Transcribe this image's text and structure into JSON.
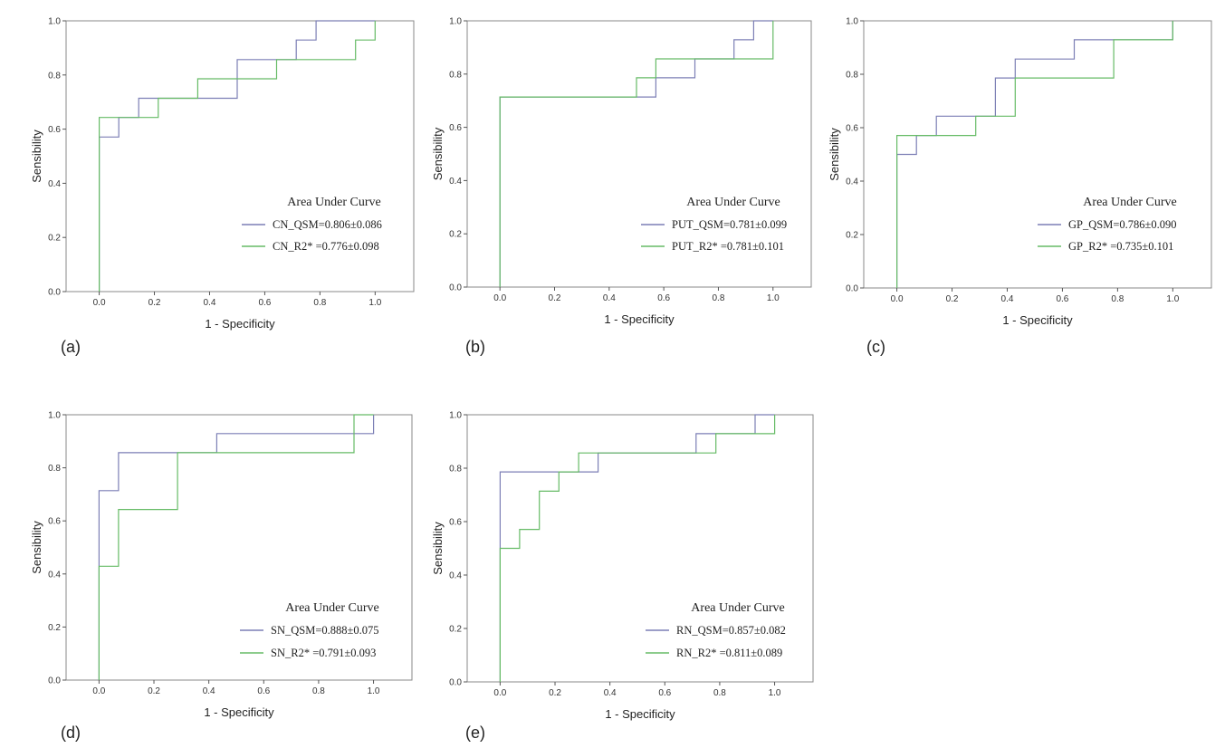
{
  "colors": {
    "qsm": "#7c7fb5",
    "r2": "#66bb66",
    "axis": "#555555",
    "frame": "#888888"
  },
  "chart_data": [
    {
      "type": "line",
      "panel_label": "(a)",
      "xlabel": "1 - Specificity",
      "ylabel": "Sensibility",
      "xlim": [
        -0.12,
        1.14
      ],
      "ylim": [
        0,
        1.0
      ],
      "xticks": [
        "0.0",
        "0.2",
        "0.4",
        "0.6",
        "0.8",
        "1.0"
      ],
      "yticks": [
        "0.0",
        "0.2",
        "0.4",
        "0.6",
        "0.8",
        "1.0"
      ],
      "legend_title": "Area Under Curve",
      "series": [
        {
          "name": "CN_QSM=0.806±0.086",
          "color_key": "qsm",
          "points": [
            [
              0,
              0
            ],
            [
              0,
              0.571
            ],
            [
              0.071,
              0.571
            ],
            [
              0.071,
              0.643
            ],
            [
              0.143,
              0.643
            ],
            [
              0.143,
              0.714
            ],
            [
              0.5,
              0.714
            ],
            [
              0.5,
              0.857
            ],
            [
              0.714,
              0.857
            ],
            [
              0.714,
              0.929
            ],
            [
              0.786,
              0.929
            ],
            [
              0.786,
              1.0
            ],
            [
              1.0,
              1.0
            ]
          ]
        },
        {
          "name": "CN_R2* =0.776±0.098",
          "color_key": "r2",
          "points": [
            [
              0,
              0
            ],
            [
              0,
              0.643
            ],
            [
              0.214,
              0.643
            ],
            [
              0.214,
              0.714
            ],
            [
              0.357,
              0.714
            ],
            [
              0.357,
              0.786
            ],
            [
              0.643,
              0.786
            ],
            [
              0.643,
              0.857
            ],
            [
              0.929,
              0.857
            ],
            [
              0.929,
              0.929
            ],
            [
              1.0,
              0.929
            ],
            [
              1.0,
              1.0
            ]
          ]
        }
      ]
    },
    {
      "type": "line",
      "panel_label": "(b)",
      "xlabel": "1 - Specificity",
      "ylabel": "Sensibility",
      "xlim": [
        -0.12,
        1.14
      ],
      "ylim": [
        0,
        1.0
      ],
      "xticks": [
        "0.0",
        "0.2",
        "0.4",
        "0.6",
        "0.8",
        "1.0"
      ],
      "yticks": [
        "0.0",
        "0.2",
        "0.4",
        "0.6",
        "0.8",
        "1.0"
      ],
      "legend_title": "Area Under Curve",
      "series": [
        {
          "name": "PUT_QSM=0.781±0.099",
          "color_key": "qsm",
          "points": [
            [
              0,
              0
            ],
            [
              0,
              0.714
            ],
            [
              0.571,
              0.714
            ],
            [
              0.571,
              0.786
            ],
            [
              0.714,
              0.786
            ],
            [
              0.714,
              0.857
            ],
            [
              0.857,
              0.857
            ],
            [
              0.857,
              0.929
            ],
            [
              0.929,
              0.929
            ],
            [
              0.929,
              1.0
            ],
            [
              1.0,
              1.0
            ]
          ]
        },
        {
          "name": "PUT_R2* =0.781±0.101",
          "color_key": "r2",
          "points": [
            [
              0,
              0
            ],
            [
              0,
              0.714
            ],
            [
              0.5,
              0.714
            ],
            [
              0.5,
              0.786
            ],
            [
              0.571,
              0.786
            ],
            [
              0.571,
              0.857
            ],
            [
              1.0,
              0.857
            ],
            [
              1.0,
              1.0
            ]
          ]
        }
      ]
    },
    {
      "type": "line",
      "panel_label": "(c)",
      "xlabel": "1 - Specificity",
      "ylabel": "Sensibility",
      "xlim": [
        -0.12,
        1.14
      ],
      "ylim": [
        0,
        1.0
      ],
      "xticks": [
        "0.0",
        "0.2",
        "0.4",
        "0.6",
        "0.8",
        "1.0"
      ],
      "yticks": [
        "0.0",
        "0.2",
        "0.4",
        "0.6",
        "0.8",
        "1.0"
      ],
      "legend_title": "Area Under Curve",
      "series": [
        {
          "name": "GP_QSM=0.786±0.090",
          "color_key": "qsm",
          "points": [
            [
              0,
              0
            ],
            [
              0,
              0.5
            ],
            [
              0.071,
              0.5
            ],
            [
              0.071,
              0.571
            ],
            [
              0.143,
              0.571
            ],
            [
              0.143,
              0.643
            ],
            [
              0.357,
              0.643
            ],
            [
              0.357,
              0.786
            ],
            [
              0.429,
              0.786
            ],
            [
              0.429,
              0.857
            ],
            [
              0.643,
              0.857
            ],
            [
              0.643,
              0.929
            ],
            [
              1.0,
              0.929
            ],
            [
              1.0,
              1.0
            ]
          ]
        },
        {
          "name": "GP_R2* =0.735±0.101",
          "color_key": "r2",
          "points": [
            [
              0,
              0
            ],
            [
              0,
              0.571
            ],
            [
              0.286,
              0.571
            ],
            [
              0.286,
              0.643
            ],
            [
              0.429,
              0.643
            ],
            [
              0.429,
              0.786
            ],
            [
              0.786,
              0.786
            ],
            [
              0.786,
              0.929
            ],
            [
              1.0,
              0.929
            ],
            [
              1.0,
              1.0
            ]
          ]
        }
      ]
    },
    {
      "type": "line",
      "panel_label": "(d)",
      "xlabel": "1 - Specificity",
      "ylabel": "Sensibility",
      "xlim": [
        -0.12,
        1.14
      ],
      "ylim": [
        0,
        1.0
      ],
      "xticks": [
        "0.0",
        "0.2",
        "0.4",
        "0.6",
        "0.8",
        "1.0"
      ],
      "yticks": [
        "0.0",
        "0.2",
        "0.4",
        "0.6",
        "0.8",
        "1.0"
      ],
      "legend_title": "Area Under Curve",
      "series": [
        {
          "name": "SN_QSM=0.888±0.075",
          "color_key": "qsm",
          "points": [
            [
              0,
              0
            ],
            [
              0,
              0.714
            ],
            [
              0.071,
              0.714
            ],
            [
              0.071,
              0.857
            ],
            [
              0.429,
              0.857
            ],
            [
              0.429,
              0.929
            ],
            [
              1.0,
              0.929
            ],
            [
              1.0,
              1.0
            ]
          ]
        },
        {
          "name": "SN_R2* =0.791±0.093",
          "color_key": "r2",
          "points": [
            [
              0,
              0
            ],
            [
              0,
              0.429
            ],
            [
              0.071,
              0.429
            ],
            [
              0.071,
              0.643
            ],
            [
              0.286,
              0.643
            ],
            [
              0.286,
              0.857
            ],
            [
              0.929,
              0.857
            ],
            [
              0.929,
              1.0
            ],
            [
              1.0,
              1.0
            ]
          ]
        }
      ]
    },
    {
      "type": "line",
      "panel_label": "(e)",
      "xlabel": "1 - Specificity",
      "ylabel": "Sensibility",
      "xlim": [
        -0.12,
        1.14
      ],
      "ylim": [
        0,
        1.0
      ],
      "xticks": [
        "0.0",
        "0.2",
        "0.4",
        "0.6",
        "0.8",
        "1.0"
      ],
      "yticks": [
        "0.0",
        "0.2",
        "0.4",
        "0.6",
        "0.8",
        "1.0"
      ],
      "legend_title": "Area Under Curve",
      "series": [
        {
          "name": "RN_QSM=0.857±0.082",
          "color_key": "qsm",
          "points": [
            [
              0,
              0
            ],
            [
              0,
              0.786
            ],
            [
              0.357,
              0.786
            ],
            [
              0.357,
              0.857
            ],
            [
              0.714,
              0.857
            ],
            [
              0.714,
              0.929
            ],
            [
              0.929,
              0.929
            ],
            [
              0.929,
              1.0
            ],
            [
              1.0,
              1.0
            ]
          ]
        },
        {
          "name": "RN_R2* =0.811±0.089",
          "color_key": "r2",
          "points": [
            [
              0,
              0
            ],
            [
              0,
              0.5
            ],
            [
              0.071,
              0.5
            ],
            [
              0.071,
              0.571
            ],
            [
              0.143,
              0.571
            ],
            [
              0.143,
              0.714
            ],
            [
              0.214,
              0.714
            ],
            [
              0.214,
              0.786
            ],
            [
              0.286,
              0.786
            ],
            [
              0.286,
              0.857
            ],
            [
              0.786,
              0.857
            ],
            [
              0.786,
              0.929
            ],
            [
              1.0,
              0.929
            ],
            [
              1.0,
              1.0
            ]
          ]
        }
      ]
    }
  ]
}
